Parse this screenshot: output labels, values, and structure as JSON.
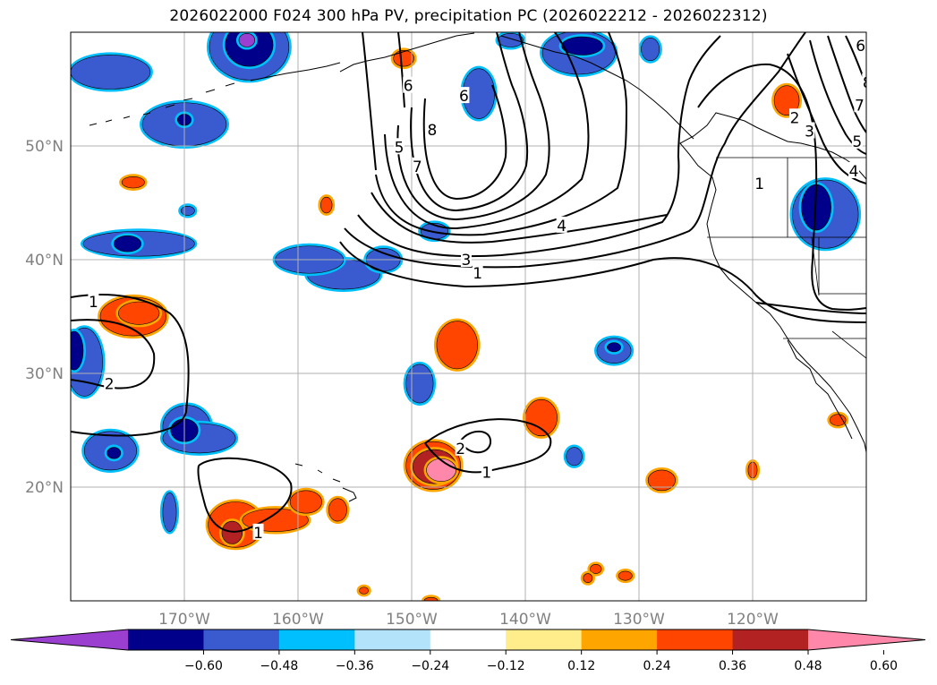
{
  "title": "2026022000 F024 300 hPa PV, precipitation PC (2026022212 - 2026022312)",
  "map": {
    "lon_range": [
      -180,
      -110
    ],
    "lat_range": [
      10,
      60
    ],
    "lon_ticks": [
      {
        "lon": -170,
        "label": "170°W"
      },
      {
        "lon": -160,
        "label": "160°W"
      },
      {
        "lon": -150,
        "label": "150°W"
      },
      {
        "lon": -140,
        "label": "140°W"
      },
      {
        "lon": -130,
        "label": "130°W"
      },
      {
        "lon": -120,
        "label": "120°W"
      }
    ],
    "lat_ticks": [
      {
        "lat": 50,
        "label": "50°N"
      },
      {
        "lat": 40,
        "label": "40°N"
      },
      {
        "lat": 30,
        "label": "30°N"
      },
      {
        "lat": 20,
        "label": "20°N"
      }
    ],
    "grid": true,
    "pv_contour_labels": [
      {
        "text": "1",
        "lon": -178.0,
        "lat": 36.3
      },
      {
        "text": "2",
        "lon": -176.6,
        "lat": 29.1
      },
      {
        "text": "1",
        "lon": -163.5,
        "lat": 16.0
      },
      {
        "text": "2",
        "lon": -145.7,
        "lat": 23.4
      },
      {
        "text": "1",
        "lon": -143.4,
        "lat": 21.3
      },
      {
        "text": "1",
        "lon": -144.2,
        "lat": 38.8
      },
      {
        "text": "3",
        "lon": -145.2,
        "lat": 40.0
      },
      {
        "text": "4",
        "lon": -136.8,
        "lat": 43.0
      },
      {
        "text": "5",
        "lon": -151.1,
        "lat": 49.9
      },
      {
        "text": "7",
        "lon": -149.5,
        "lat": 48.2
      },
      {
        "text": "8",
        "lon": -148.2,
        "lat": 51.4
      },
      {
        "text": "6",
        "lon": -150.3,
        "lat": 55.3
      },
      {
        "text": "6",
        "lon": -145.4,
        "lat": 54.4
      },
      {
        "text": "1",
        "lon": -119.4,
        "lat": 46.7
      },
      {
        "text": "2",
        "lon": -116.3,
        "lat": 52.5
      },
      {
        "text": "3",
        "lon": -115.0,
        "lat": 51.3
      },
      {
        "text": "5",
        "lon": -110.8,
        "lat": 50.4
      },
      {
        "text": "4",
        "lon": -111.1,
        "lat": 47.8
      },
      {
        "text": "7",
        "lon": -110.6,
        "lat": 53.6
      },
      {
        "text": "8",
        "lon": -109.9,
        "lat": 55.6
      },
      {
        "text": "6",
        "lon": -110.5,
        "lat": 58.8
      }
    ],
    "precip_blobs": [
      {
        "lon": -164.3,
        "lat": 58.7,
        "rx": 3.5,
        "ry": 2.9,
        "color": "#3a5bcf"
      },
      {
        "lon": -164.3,
        "lat": 58.9,
        "rx": 2.1,
        "ry": 1.9,
        "color": "#00008b"
      },
      {
        "lon": -164.5,
        "lat": 59.3,
        "rx": 0.7,
        "ry": 0.6,
        "color": "#9b3fd1"
      },
      {
        "lon": -176.5,
        "lat": 56.5,
        "rx": 3.5,
        "ry": 1.5,
        "color": "#3a5bcf"
      },
      {
        "lon": -170.0,
        "lat": 51.9,
        "rx": 3.7,
        "ry": 1.9,
        "color": "#3a5bcf"
      },
      {
        "lon": -170.0,
        "lat": 52.3,
        "rx": 0.6,
        "ry": 0.5,
        "color": "#00008b"
      },
      {
        "lon": -174.0,
        "lat": 41.4,
        "rx": 4.9,
        "ry": 1.1,
        "color": "#3a5bcf"
      },
      {
        "lon": -175.0,
        "lat": 41.4,
        "rx": 1.2,
        "ry": 0.7,
        "color": "#00008b"
      },
      {
        "lon": -156.0,
        "lat": 38.7,
        "rx": 3.2,
        "ry": 1.3,
        "color": "#3a5bcf"
      },
      {
        "lon": -159.0,
        "lat": 40.0,
        "rx": 3.0,
        "ry": 1.2,
        "color": "#3a5bcf"
      },
      {
        "lon": -152.5,
        "lat": 40.0,
        "rx": 1.5,
        "ry": 1.0,
        "color": "#3a5bcf"
      },
      {
        "lon": -148.0,
        "lat": 42.5,
        "rx": 1.2,
        "ry": 0.7,
        "color": "#3a5bcf"
      },
      {
        "lon": -169.7,
        "lat": 44.3,
        "rx": 0.6,
        "ry": 0.4,
        "color": "#3a5bcf"
      },
      {
        "lon": -144.1,
        "lat": 54.6,
        "rx": 1.4,
        "ry": 2.2,
        "color": "#3a5bcf"
      },
      {
        "lon": -135.3,
        "lat": 58.2,
        "rx": 3.2,
        "ry": 1.9,
        "color": "#3a5bcf"
      },
      {
        "lon": -135.0,
        "lat": 58.8,
        "rx": 1.8,
        "ry": 0.8,
        "color": "#00008b"
      },
      {
        "lon": -141.3,
        "lat": 59.3,
        "rx": 1.1,
        "ry": 0.6,
        "color": "#3a5bcf"
      },
      {
        "lon": -129.0,
        "lat": 58.5,
        "rx": 0.8,
        "ry": 1.0,
        "color": "#3a5bcf"
      },
      {
        "lon": -178.8,
        "lat": 31.0,
        "rx": 1.6,
        "ry": 3.0,
        "color": "#3a5bcf"
      },
      {
        "lon": -179.7,
        "lat": 32.0,
        "rx": 0.8,
        "ry": 1.7,
        "color": "#00008b"
      },
      {
        "lon": -169.8,
        "lat": 25.3,
        "rx": 2.1,
        "ry": 1.9,
        "color": "#3a5bcf"
      },
      {
        "lon": -168.7,
        "lat": 24.3,
        "rx": 3.2,
        "ry": 1.3,
        "color": "#3a5bcf"
      },
      {
        "lon": -170.0,
        "lat": 25.0,
        "rx": 1.2,
        "ry": 1.0,
        "color": "#00008b"
      },
      {
        "lon": -176.5,
        "lat": 23.2,
        "rx": 2.3,
        "ry": 1.7,
        "color": "#3a5bcf"
      },
      {
        "lon": -176.2,
        "lat": 23.0,
        "rx": 0.6,
        "ry": 0.5,
        "color": "#00008b"
      },
      {
        "lon": -171.3,
        "lat": 17.8,
        "rx": 0.6,
        "ry": 1.7,
        "color": "#3a5bcf"
      },
      {
        "lon": -149.3,
        "lat": 29.1,
        "rx": 1.2,
        "ry": 1.7,
        "color": "#3a5bcf"
      },
      {
        "lon": -132.2,
        "lat": 32.0,
        "rx": 1.5,
        "ry": 1.1,
        "color": "#3a5bcf"
      },
      {
        "lon": -132.2,
        "lat": 32.3,
        "rx": 0.6,
        "ry": 0.4,
        "color": "#00008b"
      },
      {
        "lon": -135.7,
        "lat": 22.7,
        "rx": 0.7,
        "ry": 0.8,
        "color": "#3a5bcf"
      },
      {
        "lon": -113.6,
        "lat": 44.0,
        "rx": 2.9,
        "ry": 3.0,
        "color": "#3a5bcf"
      },
      {
        "lon": -114.4,
        "lat": 44.6,
        "rx": 1.3,
        "ry": 2.0,
        "color": "#00008b"
      },
      {
        "lon": -174.5,
        "lat": 35.0,
        "rx": 2.9,
        "ry": 1.7,
        "color": "#ff4500"
      },
      {
        "lon": -174.0,
        "lat": 35.3,
        "rx": 1.8,
        "ry": 1.0,
        "color": "#ff4500"
      },
      {
        "lon": -174.5,
        "lat": 46.8,
        "rx": 1.0,
        "ry": 0.5,
        "color": "#ff4500"
      },
      {
        "lon": -157.5,
        "lat": 44.8,
        "rx": 0.5,
        "ry": 0.7,
        "color": "#ff4500"
      },
      {
        "lon": -150.7,
        "lat": 57.7,
        "rx": 0.9,
        "ry": 0.7,
        "color": "#ff4500"
      },
      {
        "lon": -117.0,
        "lat": 54.0,
        "rx": 1.1,
        "ry": 1.3,
        "color": "#ff4500"
      },
      {
        "lon": -146.0,
        "lat": 32.5,
        "rx": 1.8,
        "ry": 2.1,
        "color": "#ff4500"
      },
      {
        "lon": -138.6,
        "lat": 26.1,
        "rx": 1.4,
        "ry": 1.6,
        "color": "#ff4500"
      },
      {
        "lon": -148.1,
        "lat": 21.9,
        "rx": 2.4,
        "ry": 2.1,
        "color": "#ff4500"
      },
      {
        "lon": -148.0,
        "lat": 21.8,
        "rx": 1.9,
        "ry": 1.5,
        "color": "#b22222"
      },
      {
        "lon": -147.4,
        "lat": 21.5,
        "rx": 1.3,
        "ry": 1.0,
        "color": "#ff88aa"
      },
      {
        "lon": -165.5,
        "lat": 16.7,
        "rx": 2.4,
        "ry": 2.0,
        "color": "#ff4500"
      },
      {
        "lon": -162.0,
        "lat": 17.1,
        "rx": 2.9,
        "ry": 1.0,
        "color": "#ff4500"
      },
      {
        "lon": -159.3,
        "lat": 18.7,
        "rx": 1.4,
        "ry": 1.0,
        "color": "#ff4500"
      },
      {
        "lon": -165.8,
        "lat": 16.0,
        "rx": 0.9,
        "ry": 1.0,
        "color": "#b22222"
      },
      {
        "lon": -156.5,
        "lat": 18.0,
        "rx": 0.8,
        "ry": 1.0,
        "color": "#ff4500"
      },
      {
        "lon": -128.0,
        "lat": 20.6,
        "rx": 1.2,
        "ry": 0.9,
        "color": "#ff4500"
      },
      {
        "lon": -133.8,
        "lat": 12.8,
        "rx": 0.5,
        "ry": 0.4,
        "color": "#ff4500"
      },
      {
        "lon": -131.2,
        "lat": 12.2,
        "rx": 0.6,
        "ry": 0.4,
        "color": "#ff4500"
      },
      {
        "lon": -134.5,
        "lat": 12.0,
        "rx": 0.4,
        "ry": 0.4,
        "color": "#ff4500"
      },
      {
        "lon": -112.5,
        "lat": 25.9,
        "rx": 0.7,
        "ry": 0.5,
        "color": "#ff4500"
      },
      {
        "lon": -120.0,
        "lat": 21.5,
        "rx": 0.4,
        "ry": 0.7,
        "color": "#ff4500"
      },
      {
        "lon": -154.2,
        "lat": 10.9,
        "rx": 0.4,
        "ry": 0.3,
        "color": "#ff4500"
      },
      {
        "lon": -148.3,
        "lat": 10.0,
        "rx": 0.6,
        "ry": 0.3,
        "color": "#ff4500"
      }
    ]
  },
  "colorbar": {
    "colors": [
      "#9b3fd1",
      "#00008b",
      "#3a5bcf",
      "#00bfff",
      "#b3e3fb",
      "#ffffff",
      "#ffec8b",
      "#ffa500",
      "#ff4500",
      "#b22222",
      "#ff88aa"
    ],
    "ticks": [
      "−0.60",
      "−0.48",
      "−0.36",
      "−0.24",
      "−0.12",
      "0.12",
      "0.24",
      "0.36",
      "0.48",
      "0.60"
    ]
  }
}
